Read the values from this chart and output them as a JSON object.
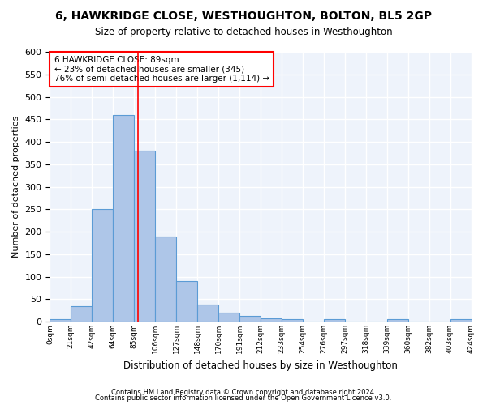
{
  "title": "6, HAWKRIDGE CLOSE, WESTHOUGHTON, BOLTON, BL5 2GP",
  "subtitle": "Size of property relative to detached houses in Westhoughton",
  "xlabel": "Distribution of detached houses by size in Westhoughton",
  "ylabel": "Number of detached properties",
  "bar_color": "#aec6e8",
  "bar_edge_color": "#5b9bd5",
  "bar_values": [
    5,
    35,
    250,
    460,
    380,
    190,
    90,
    38,
    20,
    13,
    8,
    6,
    0,
    6,
    0,
    0,
    5,
    0,
    0,
    5
  ],
  "bin_labels": [
    "0sqm",
    "21sqm",
    "42sqm",
    "64sqm",
    "85sqm",
    "106sqm",
    "127sqm",
    "148sqm",
    "170sqm",
    "191sqm",
    "212sqm",
    "233sqm",
    "254sqm",
    "276sqm",
    "297sqm",
    "318sqm",
    "339sqm",
    "360sqm",
    "382sqm",
    "403sqm",
    "424sqm"
  ],
  "ylim": [
    0,
    600
  ],
  "yticks": [
    0,
    50,
    100,
    150,
    200,
    250,
    300,
    350,
    400,
    450,
    500,
    550,
    600
  ],
  "annotation_text": "6 HAWKRIDGE CLOSE: 89sqm\n← 23% of detached houses are smaller (345)\n76% of semi-detached houses are larger (1,114) →",
  "annotation_box_color": "white",
  "annotation_box_edge": "red",
  "footer1": "Contains HM Land Registry data © Crown copyright and database right 2024.",
  "footer2": "Contains public sector information licensed under the Open Government Licence v3.0.",
  "background_color": "#eef3fb",
  "grid_color": "white",
  "vline_color": "red",
  "vline_x": 4.19
}
